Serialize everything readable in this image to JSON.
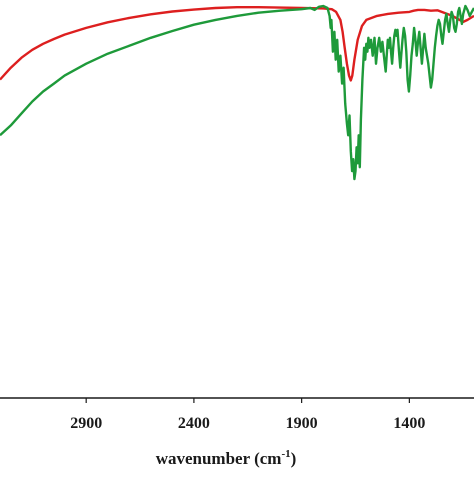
{
  "chart_data": {
    "type": "line",
    "title": "",
    "xlabel": "wavenumber (cm",
    "xlabel_sup": "-1",
    "xlabel_close": ")",
    "ylabel": "",
    "x_reversed": true,
    "xlim": [
      3300,
      1100
    ],
    "ylim": [
      0,
      100
    ],
    "grid": false,
    "legend": "none",
    "x_ticks": [
      2900,
      2400,
      1900,
      1400
    ],
    "series": [
      {
        "color": "#dd1f1f",
        "points": [
          [
            3300,
            80.0
          ],
          [
            3250,
            83.0
          ],
          [
            3200,
            85.5
          ],
          [
            3150,
            87.5
          ],
          [
            3100,
            89.0
          ],
          [
            3050,
            90.2
          ],
          [
            3000,
            91.3
          ],
          [
            2900,
            93.0
          ],
          [
            2800,
            94.4
          ],
          [
            2700,
            95.5
          ],
          [
            2600,
            96.4
          ],
          [
            2500,
            97.1
          ],
          [
            2400,
            97.6
          ],
          [
            2300,
            98.0
          ],
          [
            2200,
            98.2
          ],
          [
            2100,
            98.2
          ],
          [
            2000,
            98.1
          ],
          [
            1900,
            98.0
          ],
          [
            1800,
            97.9
          ],
          [
            1760,
            97.7
          ],
          [
            1740,
            97.0
          ],
          [
            1720,
            95.0
          ],
          [
            1710,
            92.0
          ],
          [
            1700,
            88.0
          ],
          [
            1690,
            84.0
          ],
          [
            1680,
            81.0
          ],
          [
            1672,
            79.8
          ],
          [
            1665,
            81.0
          ],
          [
            1655,
            85.0
          ],
          [
            1640,
            90.0
          ],
          [
            1620,
            93.5
          ],
          [
            1600,
            95.0
          ],
          [
            1550,
            96.0
          ],
          [
            1500,
            96.5
          ],
          [
            1450,
            96.8
          ],
          [
            1400,
            97.0
          ],
          [
            1380,
            97.3
          ],
          [
            1360,
            97.5
          ],
          [
            1330,
            97.5
          ],
          [
            1300,
            97.3
          ],
          [
            1270,
            97.4
          ],
          [
            1250,
            97.0
          ],
          [
            1200,
            96.0
          ],
          [
            1150,
            94.5
          ],
          [
            1130,
            95.0
          ],
          [
            1100,
            96.0
          ]
        ]
      },
      {
        "color": "#1e9a3a",
        "points": [
          [
            3300,
            66.0
          ],
          [
            3250,
            68.5
          ],
          [
            3200,
            71.5
          ],
          [
            3150,
            74.5
          ],
          [
            3100,
            77.0
          ],
          [
            3050,
            79.0
          ],
          [
            3000,
            81.0
          ],
          [
            2900,
            84.0
          ],
          [
            2800,
            86.5
          ],
          [
            2700,
            88.5
          ],
          [
            2600,
            90.5
          ],
          [
            2500,
            92.2
          ],
          [
            2400,
            93.8
          ],
          [
            2300,
            95.0
          ],
          [
            2200,
            96.0
          ],
          [
            2100,
            96.8
          ],
          [
            2000,
            97.3
          ],
          [
            1900,
            97.7
          ],
          [
            1860,
            98.0
          ],
          [
            1840,
            97.5
          ],
          [
            1820,
            98.3
          ],
          [
            1800,
            98.5
          ],
          [
            1780,
            98.0
          ],
          [
            1770,
            96.0
          ],
          [
            1765,
            93.0
          ],
          [
            1762,
            95.0
          ],
          [
            1755,
            87.0
          ],
          [
            1748,
            92.0
          ],
          [
            1742,
            85.0
          ],
          [
            1735,
            90.0
          ],
          [
            1728,
            82.0
          ],
          [
            1720,
            86.0
          ],
          [
            1712,
            79.0
          ],
          [
            1705,
            83.0
          ],
          [
            1698,
            74.0
          ],
          [
            1690,
            69.0
          ],
          [
            1684,
            66.0
          ],
          [
            1678,
            71.0
          ],
          [
            1672,
            62.0
          ],
          [
            1666,
            57.0
          ],
          [
            1660,
            60.0
          ],
          [
            1655,
            55.0
          ],
          [
            1650,
            57.0
          ],
          [
            1645,
            63.0
          ],
          [
            1640,
            59.0
          ],
          [
            1635,
            66.0
          ],
          [
            1630,
            58.0
          ],
          [
            1625,
            70.0
          ],
          [
            1618,
            80.0
          ],
          [
            1610,
            88.0
          ],
          [
            1605,
            85.0
          ],
          [
            1600,
            89.0
          ],
          [
            1595,
            87.0
          ],
          [
            1590,
            90.5
          ],
          [
            1585,
            88.0
          ],
          [
            1578,
            90.0
          ],
          [
            1570,
            86.0
          ],
          [
            1562,
            90.5
          ],
          [
            1555,
            84.0
          ],
          [
            1548,
            88.0
          ],
          [
            1540,
            90.5
          ],
          [
            1532,
            87.0
          ],
          [
            1525,
            89.5
          ],
          [
            1518,
            86.0
          ],
          [
            1510,
            82.0
          ],
          [
            1505,
            86.0
          ],
          [
            1500,
            90.0
          ],
          [
            1495,
            88.0
          ],
          [
            1490,
            90.5
          ],
          [
            1485,
            87.0
          ],
          [
            1480,
            84.0
          ],
          [
            1475,
            88.0
          ],
          [
            1470,
            91.0
          ],
          [
            1465,
            92.5
          ],
          [
            1460,
            91.0
          ],
          [
            1455,
            92.5
          ],
          [
            1448,
            87.0
          ],
          [
            1442,
            83.0
          ],
          [
            1438,
            86.0
          ],
          [
            1432,
            90.0
          ],
          [
            1426,
            93.0
          ],
          [
            1420,
            91.0
          ],
          [
            1414,
            87.0
          ],
          [
            1408,
            80.0
          ],
          [
            1402,
            77.0
          ],
          [
            1396,
            81.0
          ],
          [
            1390,
            86.0
          ],
          [
            1384,
            89.0
          ],
          [
            1378,
            93.0
          ],
          [
            1372,
            90.0
          ],
          [
            1366,
            86.0
          ],
          [
            1360,
            89.5
          ],
          [
            1354,
            92.0
          ],
          [
            1348,
            88.0
          ],
          [
            1342,
            84.0
          ],
          [
            1336,
            88.0
          ],
          [
            1330,
            91.5
          ],
          [
            1324,
            88.0
          ],
          [
            1318,
            86.0
          ],
          [
            1312,
            84.0
          ],
          [
            1306,
            81.0
          ],
          [
            1300,
            78.0
          ],
          [
            1294,
            80.0
          ],
          [
            1288,
            84.0
          ],
          [
            1282,
            88.0
          ],
          [
            1276,
            91.0
          ],
          [
            1270,
            93.5
          ],
          [
            1264,
            95.0
          ],
          [
            1258,
            94.0
          ],
          [
            1252,
            91.0
          ],
          [
            1246,
            89.0
          ],
          [
            1240,
            92.0
          ],
          [
            1234,
            95.0
          ],
          [
            1228,
            96.5
          ],
          [
            1222,
            94.0
          ],
          [
            1216,
            92.0
          ],
          [
            1210,
            95.0
          ],
          [
            1204,
            97.0
          ],
          [
            1198,
            96.0
          ],
          [
            1192,
            93.0
          ],
          [
            1186,
            92.0
          ],
          [
            1180,
            94.0
          ],
          [
            1174,
            97.0
          ],
          [
            1168,
            98.0
          ],
          [
            1162,
            96.0
          ],
          [
            1156,
            94.0
          ],
          [
            1150,
            96.5
          ],
          [
            1140,
            98.5
          ],
          [
            1130,
            97.5
          ],
          [
            1120,
            96.0
          ],
          [
            1110,
            97.0
          ],
          [
            1100,
            98.0
          ]
        ]
      }
    ]
  }
}
